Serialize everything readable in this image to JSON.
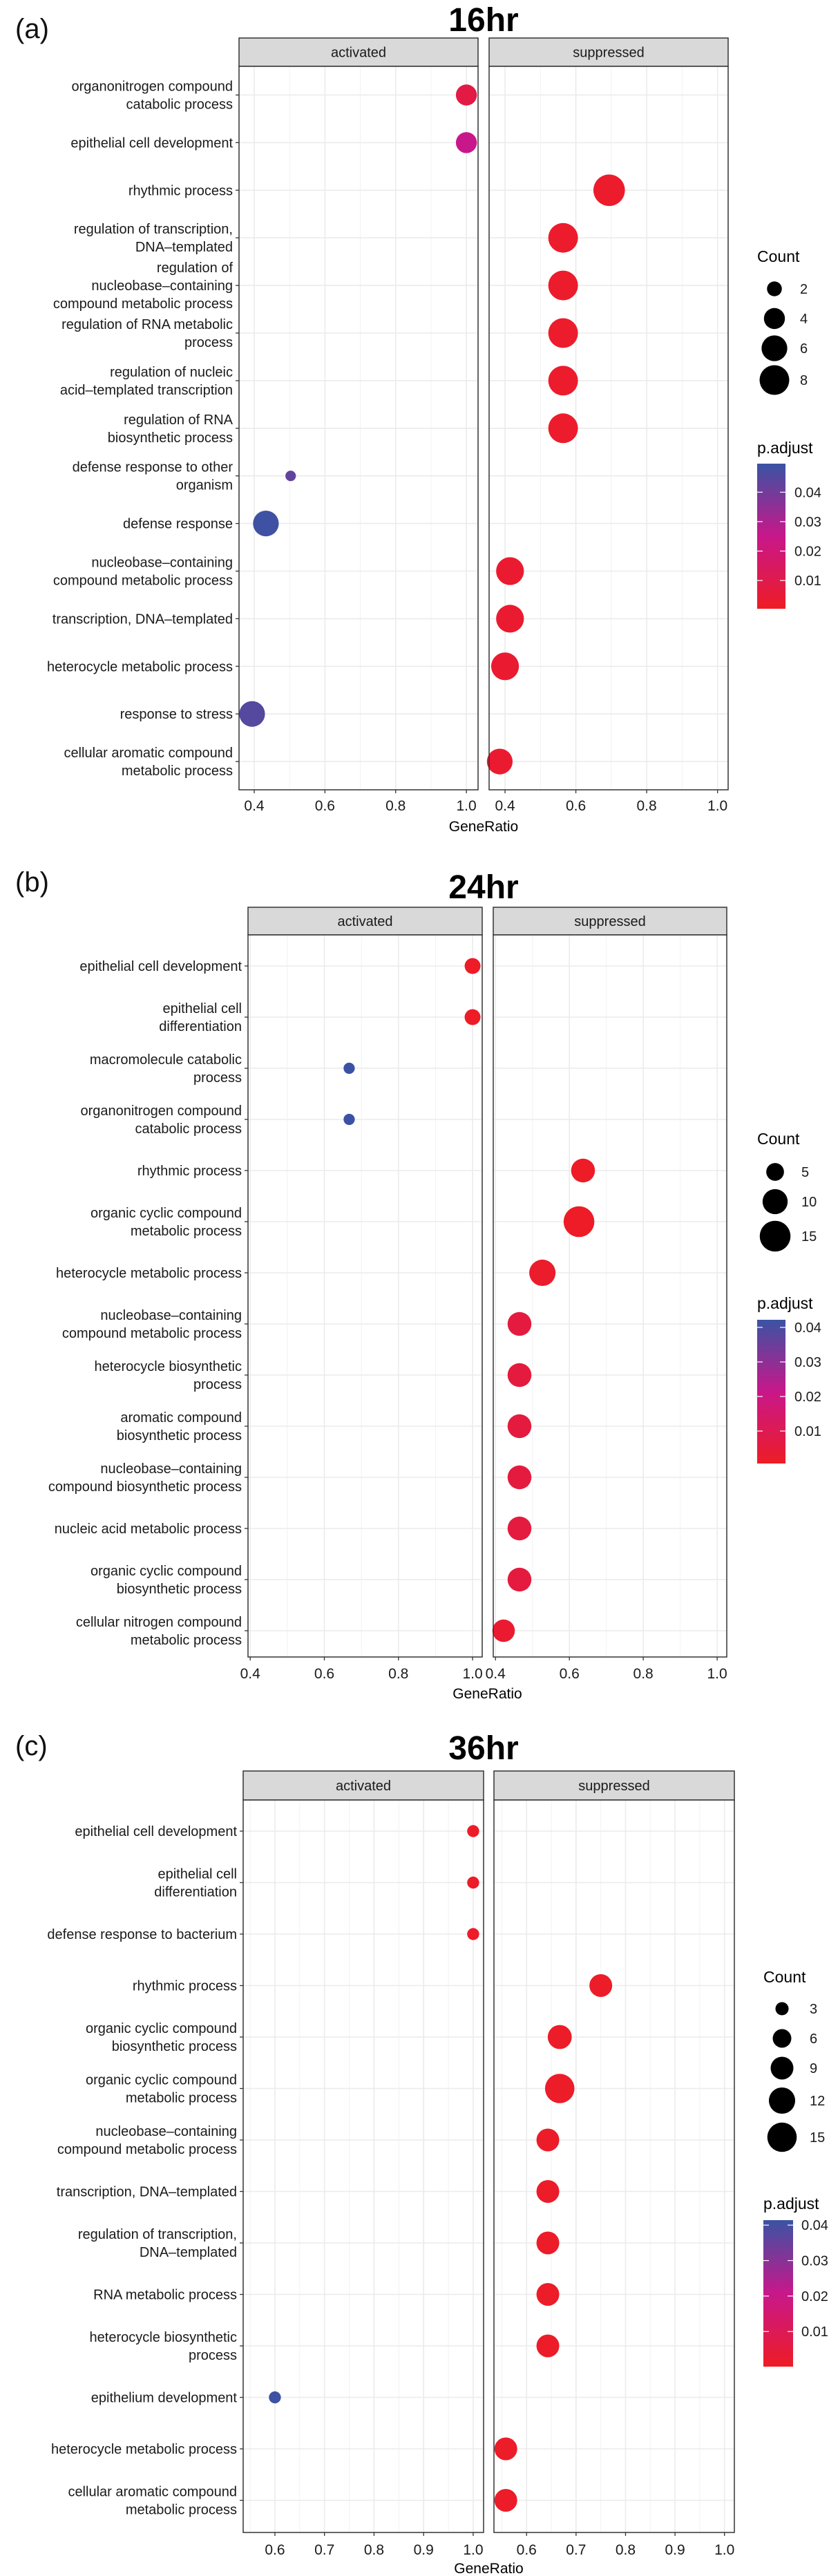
{
  "colors": {
    "low": "#EE1C25",
    "mid": "#C8178A",
    "high": "#3A53A4",
    "strip_fill": "#D9D9D9",
    "grid": "#EBEBEB"
  },
  "chart_data": [
    {
      "type": "scatter",
      "panel_label": "(a)",
      "title": "16hr",
      "facets": [
        "activated",
        "suppressed"
      ],
      "xlabel": "GeneRatio",
      "xlim": {
        "activated": [
          0.357,
          1.033
        ],
        "suppressed": [
          0.355,
          1.03
        ]
      },
      "xticks": [
        0.4,
        0.6,
        0.8,
        1.0
      ],
      "tick_labels": [
        "0.4",
        "0.6",
        "0.8",
        "1.0"
      ],
      "minor_xticks": [
        0.5,
        0.7,
        0.9
      ],
      "rows": [
        {
          "label": [
            "organonitrogen compound",
            "catabolic process"
          ],
          "facet": "activated",
          "gene_ratio": 1.0,
          "count": 4,
          "p_adjust": 0.008
        },
        {
          "label": [
            "epithelial cell development"
          ],
          "facet": "activated",
          "gene_ratio": 1.0,
          "count": 4,
          "p_adjust": 0.025
        },
        {
          "label": [
            "rhythmic process"
          ],
          "facet": "suppressed",
          "gene_ratio": 0.694,
          "count": 9,
          "p_adjust": 0.002
        },
        {
          "label": [
            "regulation of transcription,",
            "DNA–templated"
          ],
          "facet": "suppressed",
          "gene_ratio": 0.564,
          "count": 8,
          "p_adjust": 0.002
        },
        {
          "label": [
            "regulation of",
            "nucleobase–containing",
            "compound metabolic process"
          ],
          "facet": "suppressed",
          "gene_ratio": 0.564,
          "count": 8,
          "p_adjust": 0.002
        },
        {
          "label": [
            "regulation of RNA metabolic",
            "process"
          ],
          "facet": "suppressed",
          "gene_ratio": 0.564,
          "count": 8,
          "p_adjust": 0.002
        },
        {
          "label": [
            "regulation of nucleic",
            "acid–templated transcription"
          ],
          "facet": "suppressed",
          "gene_ratio": 0.564,
          "count": 8,
          "p_adjust": 0.002
        },
        {
          "label": [
            "regulation of RNA",
            "biosynthetic process"
          ],
          "facet": "suppressed",
          "gene_ratio": 0.564,
          "count": 8,
          "p_adjust": 0.002
        },
        {
          "label": [
            "defense response to other",
            "organism"
          ],
          "facet": "activated",
          "gene_ratio": 0.503,
          "count": 1,
          "p_adjust": 0.043
        },
        {
          "label": [
            "defense response"
          ],
          "facet": "activated",
          "gene_ratio": 0.433,
          "count": 6,
          "p_adjust": 0.049
        },
        {
          "label": [
            "nucleobase–containing",
            "compound metabolic process"
          ],
          "facet": "suppressed",
          "gene_ratio": 0.414,
          "count": 7,
          "p_adjust": 0.003
        },
        {
          "label": [
            "transcription, DNA–templated"
          ],
          "facet": "suppressed",
          "gene_ratio": 0.414,
          "count": 7,
          "p_adjust": 0.003
        },
        {
          "label": [
            "heterocycle metabolic process"
          ],
          "facet": "suppressed",
          "gene_ratio": 0.4,
          "count": 7,
          "p_adjust": 0.003
        },
        {
          "label": [
            "response to stress"
          ],
          "facet": "activated",
          "gene_ratio": 0.394,
          "count": 6,
          "p_adjust": 0.045
        },
        {
          "label": [
            "cellular aromatic compound",
            "metabolic process"
          ],
          "facet": "suppressed",
          "gene_ratio": 0.385,
          "count": 6,
          "p_adjust": 0.003
        }
      ],
      "legend": {
        "count_title": "Count",
        "count_breaks": [
          2,
          4,
          6,
          8
        ],
        "count_labels": [
          "2",
          "4",
          "6",
          "8"
        ],
        "color_title": "p.adjust",
        "color_breaks": [
          0.04,
          0.03,
          0.02,
          0.01
        ],
        "color_labels": [
          "0.04",
          "0.03",
          "0.02",
          "0.01"
        ],
        "color_limits": [
          0.0004,
          0.0497
        ]
      }
    },
    {
      "type": "scatter",
      "panel_label": "(b)",
      "title": "24hr",
      "facets": [
        "activated",
        "suppressed"
      ],
      "xlabel": "GeneRatio",
      "xlim": {
        "activated": [
          0.394,
          1.026
        ],
        "suppressed": [
          0.394,
          1.026
        ]
      },
      "xticks": [
        0.4,
        0.6,
        0.8,
        1.0
      ],
      "tick_labels": [
        "0.4",
        "0.6",
        "0.8",
        "1.0"
      ],
      "minor_xticks": [
        0.5,
        0.7,
        0.9
      ],
      "rows": [
        {
          "label": [
            "epithelial cell development"
          ],
          "facet": "activated",
          "gene_ratio": 1.0,
          "count": 4,
          "p_adjust": 0.001
        },
        {
          "label": [
            "epithelial cell",
            "differentiation"
          ],
          "facet": "activated",
          "gene_ratio": 1.0,
          "count": 4,
          "p_adjust": 0.001
        },
        {
          "label": [
            "macromolecule catabolic",
            "process"
          ],
          "facet": "activated",
          "gene_ratio": 0.667,
          "count": 2,
          "p_adjust": 0.042
        },
        {
          "label": [
            "organonitrogen compound",
            "catabolic process"
          ],
          "facet": "activated",
          "gene_ratio": 0.667,
          "count": 2,
          "p_adjust": 0.042
        },
        {
          "label": [
            "rhythmic process"
          ],
          "facet": "suppressed",
          "gene_ratio": 0.637,
          "count": 9,
          "p_adjust": 0.001
        },
        {
          "label": [
            "organic cyclic compound",
            "metabolic process"
          ],
          "facet": "suppressed",
          "gene_ratio": 0.626,
          "count": 15,
          "p_adjust": 0.001
        },
        {
          "label": [
            "heterocycle metabolic process"
          ],
          "facet": "suppressed",
          "gene_ratio": 0.527,
          "count": 11,
          "p_adjust": 0.002
        },
        {
          "label": [
            "nucleobase–containing",
            "compound metabolic process"
          ],
          "facet": "suppressed",
          "gene_ratio": 0.465,
          "count": 9,
          "p_adjust": 0.006
        },
        {
          "label": [
            "heterocycle biosynthetic",
            "process"
          ],
          "facet": "suppressed",
          "gene_ratio": 0.465,
          "count": 9,
          "p_adjust": 0.006
        },
        {
          "label": [
            "aromatic compound",
            "biosynthetic process"
          ],
          "facet": "suppressed",
          "gene_ratio": 0.465,
          "count": 9,
          "p_adjust": 0.006
        },
        {
          "label": [
            "nucleobase–containing",
            "compound biosynthetic process"
          ],
          "facet": "suppressed",
          "gene_ratio": 0.465,
          "count": 9,
          "p_adjust": 0.006
        },
        {
          "label": [
            "nucleic acid metabolic process"
          ],
          "facet": "suppressed",
          "gene_ratio": 0.465,
          "count": 9,
          "p_adjust": 0.006
        },
        {
          "label": [
            "organic cyclic compound",
            "biosynthetic process"
          ],
          "facet": "suppressed",
          "gene_ratio": 0.465,
          "count": 9,
          "p_adjust": 0.006
        },
        {
          "label": [
            "cellular nitrogen compound",
            "metabolic process"
          ],
          "facet": "suppressed",
          "gene_ratio": 0.422,
          "count": 8,
          "p_adjust": 0.003
        }
      ],
      "legend": {
        "count_title": "Count",
        "count_breaks": [
          5,
          10,
          15
        ],
        "count_labels": [
          "5",
          "10",
          "15"
        ],
        "color_title": "p.adjust",
        "color_breaks": [
          0.04,
          0.03,
          0.02,
          0.01
        ],
        "color_labels": [
          "0.04",
          "0.03",
          "0.02",
          "0.01"
        ],
        "color_limits": [
          0.0006,
          0.0422
        ]
      }
    },
    {
      "type": "scatter",
      "panel_label": "(c)",
      "title": "36hr",
      "facets": [
        "activated",
        "suppressed"
      ],
      "xlabel": "GeneRatio",
      "xlim": {
        "activated": [
          0.536,
          1.021
        ],
        "suppressed": [
          0.534,
          1.02
        ]
      },
      "xticks": [
        0.6,
        0.7,
        0.8,
        0.9,
        1.0
      ],
      "tick_labels": [
        "0.6",
        "0.7",
        "0.8",
        "0.9",
        "1.0"
      ],
      "minor_xticks": [
        0.55,
        0.65,
        0.75,
        0.85,
        0.95
      ],
      "rows": [
        {
          "label": [
            "epithelial cell development"
          ],
          "facet": "activated",
          "gene_ratio": 1.0,
          "count": 2.5,
          "p_adjust": 0.001
        },
        {
          "label": [
            "epithelial cell",
            "differentiation"
          ],
          "facet": "activated",
          "gene_ratio": 1.0,
          "count": 2.5,
          "p_adjust": 0.001
        },
        {
          "label": [
            "defense response to bacterium"
          ],
          "facet": "activated",
          "gene_ratio": 1.0,
          "count": 2.5,
          "p_adjust": 0.001
        },
        {
          "label": [
            "rhythmic process"
          ],
          "facet": "suppressed",
          "gene_ratio": 0.75,
          "count": 9,
          "p_adjust": 0.001
        },
        {
          "label": [
            "organic cyclic compound",
            "biosynthetic process"
          ],
          "facet": "suppressed",
          "gene_ratio": 0.667,
          "count": 10,
          "p_adjust": 0.001
        },
        {
          "label": [
            "organic cyclic compound",
            "metabolic process"
          ],
          "facet": "suppressed",
          "gene_ratio": 0.667,
          "count": 15,
          "p_adjust": 0.001
        },
        {
          "label": [
            "nucleobase–containing",
            "compound metabolic process"
          ],
          "facet": "suppressed",
          "gene_ratio": 0.643,
          "count": 9,
          "p_adjust": 0.001
        },
        {
          "label": [
            "transcription, DNA–templated"
          ],
          "facet": "suppressed",
          "gene_ratio": 0.643,
          "count": 9,
          "p_adjust": 0.001
        },
        {
          "label": [
            "regulation of transcription,",
            "DNA–templated"
          ],
          "facet": "suppressed",
          "gene_ratio": 0.643,
          "count": 9,
          "p_adjust": 0.001
        },
        {
          "label": [
            "RNA metabolic process"
          ],
          "facet": "suppressed",
          "gene_ratio": 0.643,
          "count": 9,
          "p_adjust": 0.001
        },
        {
          "label": [
            "heterocycle biosynthetic",
            "process"
          ],
          "facet": "suppressed",
          "gene_ratio": 0.643,
          "count": 9,
          "p_adjust": 0.001
        },
        {
          "label": [
            "epithelium development"
          ],
          "facet": "activated",
          "gene_ratio": 0.6,
          "count": 2.5,
          "p_adjust": 0.041
        },
        {
          "label": [
            "heterocycle metabolic process"
          ],
          "facet": "suppressed",
          "gene_ratio": 0.558,
          "count": 9,
          "p_adjust": 0.001
        },
        {
          "label": [
            "cellular aromatic compound",
            "metabolic process"
          ],
          "facet": "suppressed",
          "gene_ratio": 0.558,
          "count": 9,
          "p_adjust": 0.001
        }
      ],
      "legend": {
        "count_title": "Count",
        "count_breaks": [
          3,
          6,
          9,
          12,
          15
        ],
        "count_labels": [
          "3",
          "6",
          "9",
          "12",
          "15"
        ],
        "color_title": "p.adjust",
        "color_breaks": [
          0.04,
          0.03,
          0.02,
          0.01
        ],
        "color_labels": [
          "0.04",
          "0.03",
          "0.02",
          "0.01"
        ],
        "color_limits": [
          0.0001,
          0.0414
        ]
      }
    }
  ]
}
